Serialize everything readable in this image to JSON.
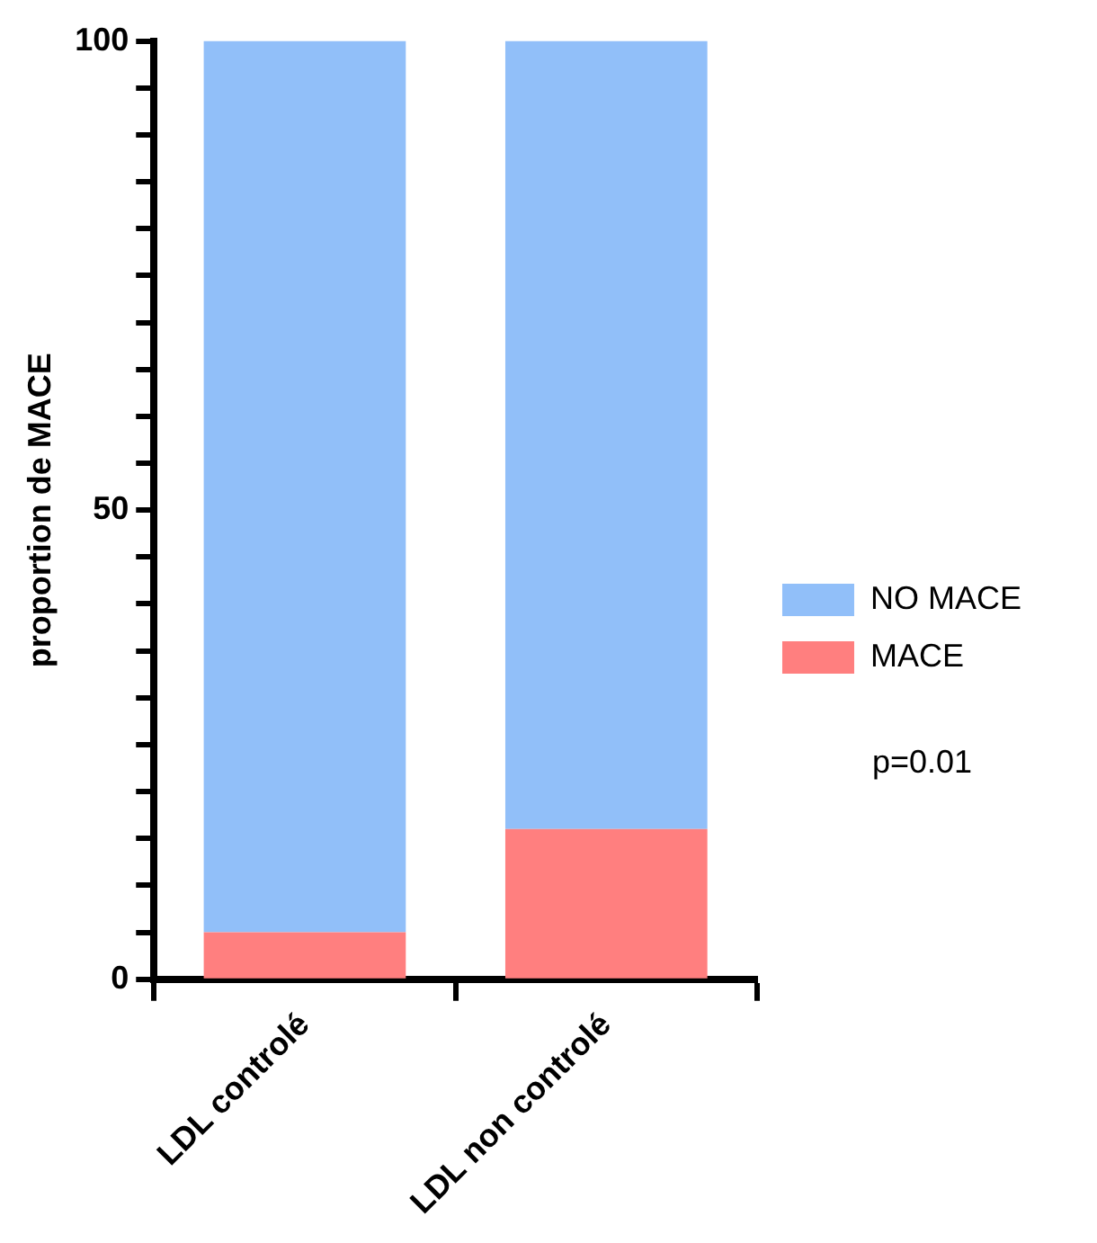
{
  "chart_data": {
    "type": "bar",
    "stacked": true,
    "ylabel": "proportion de MACE",
    "categories": [
      "LDL controlé",
      "LDL non controlé"
    ],
    "series": [
      {
        "name": "MACE",
        "color": "#ff7f7f",
        "values": [
          5,
          16
        ]
      },
      {
        "name": "NO MACE",
        "color": "#91bff9",
        "values": [
          95,
          84
        ]
      }
    ],
    "ylim": [
      0,
      100
    ],
    "yticks": [
      0,
      {
        "value": 5,
        "label": null
      },
      {
        "value": 10,
        "label": null
      },
      {
        "value": 15,
        "label": null
      },
      {
        "value": 20,
        "label": null
      },
      {
        "value": 25,
        "label": null
      },
      {
        "value": 30,
        "label": null
      },
      {
        "value": 35,
        "label": null
      },
      {
        "value": 40,
        "label": null
      },
      {
        "value": 45,
        "label": null
      },
      50,
      {
        "value": 55,
        "label": null
      },
      {
        "value": 60,
        "label": null
      },
      {
        "value": 65,
        "label": null
      },
      {
        "value": 70,
        "label": null
      },
      {
        "value": 75,
        "label": null
      },
      {
        "value": 80,
        "label": null
      },
      {
        "value": 85,
        "label": null
      },
      {
        "value": 90,
        "label": null
      },
      {
        "value": 95,
        "label": null
      },
      100
    ],
    "grid": false,
    "legend": "right",
    "annotations": [
      "p=0.01"
    ]
  }
}
